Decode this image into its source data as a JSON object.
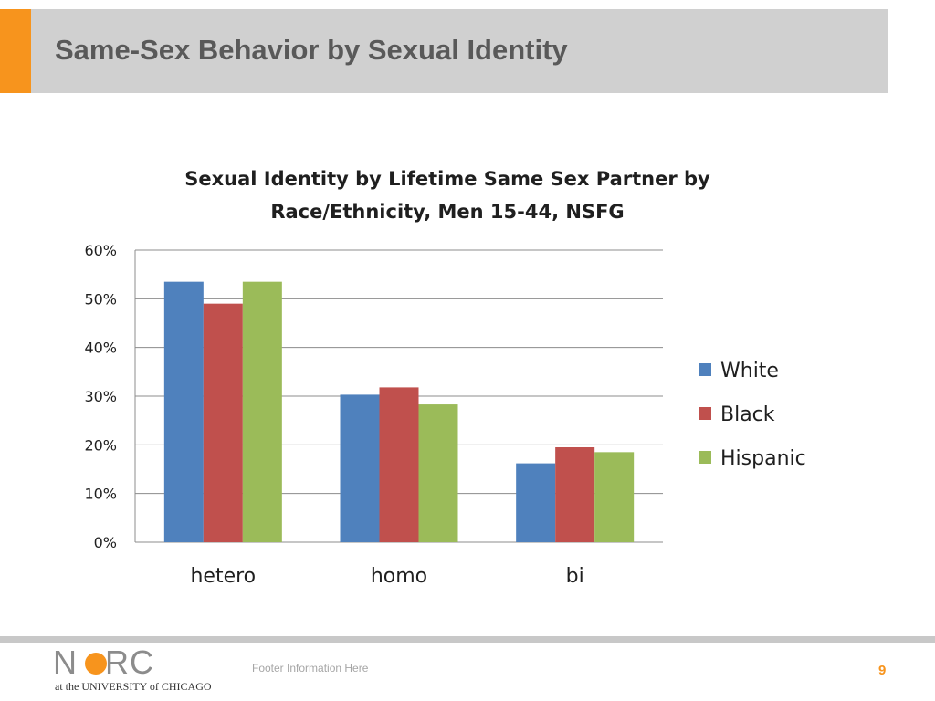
{
  "slide": {
    "title": "Same-Sex Behavior by Sexual Identity",
    "accent_color": "#f7941d",
    "footer_text": "Footer Information Here",
    "page_number": "9"
  },
  "logo": {
    "text_left": "N",
    "text_right": "RC",
    "subtitle": "at the UNIVERSITY of CHICAGO"
  },
  "chart_data": {
    "type": "bar",
    "title": "Sexual Identity by Lifetime Same Sex Partner by Race/Ethnicity, Men 15-44, NSFG",
    "title_lines": [
      "Sexual Identity by Lifetime Same Sex Partner by",
      "Race/Ethnicity, Men 15-44, NSFG"
    ],
    "categories": [
      "hetero",
      "homo",
      "bi"
    ],
    "series": [
      {
        "name": "White",
        "color": "#4f81bd",
        "values": [
          53.5,
          30.3,
          16.2
        ]
      },
      {
        "name": "Black",
        "color": "#c0504d",
        "values": [
          49,
          31.8,
          19.5
        ]
      },
      {
        "name": "Hispanic",
        "color": "#9bbb59",
        "values": [
          53.5,
          28.3,
          18.5
        ]
      }
    ],
    "yticks": [
      "0%",
      "10%",
      "20%",
      "30%",
      "40%",
      "50%",
      "60%"
    ],
    "ylim": [
      0,
      60
    ],
    "xlabel": "",
    "ylabel": "",
    "grid": true,
    "legend_position": "right"
  }
}
